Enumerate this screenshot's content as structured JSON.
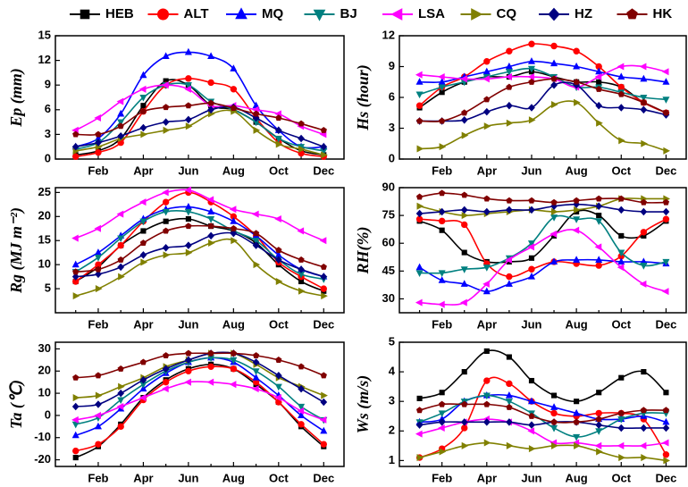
{
  "chart_data": [
    {
      "type": "line",
      "ylabel": "Ep (mm)",
      "categories": [
        null,
        "Feb",
        null,
        "Apr",
        null,
        "Jun",
        null,
        "Aug",
        null,
        "Oct",
        null,
        "Dec"
      ],
      "ylim": [
        0,
        15
      ],
      "yticks": [
        0,
        3,
        6,
        9,
        12,
        15
      ],
      "series": [
        {
          "name": "HEB",
          "color": "#000000",
          "values": [
            0.5,
            1.0,
            2.5,
            6.5,
            9.5,
            9.0,
            6.5,
            6.0,
            4.5,
            2.5,
            1.0,
            0.5
          ]
        },
        {
          "name": "ALT",
          "color": "#ff0000",
          "values": [
            0.3,
            0.8,
            2.0,
            5.8,
            9.0,
            9.8,
            9.3,
            8.5,
            5.0,
            2.0,
            0.7,
            0.3
          ]
        },
        {
          "name": "MQ",
          "color": "#0000ff",
          "values": [
            1.5,
            2.5,
            5.5,
            10.2,
            12.5,
            13.0,
            12.5,
            11.0,
            6.5,
            3.5,
            1.5,
            1.5
          ]
        },
        {
          "name": "BJ",
          "color": "#008080",
          "values": [
            1.2,
            2.0,
            4.5,
            7.5,
            9.0,
            9.0,
            7.0,
            6.0,
            4.5,
            2.5,
            1.5,
            1.0
          ]
        },
        {
          "name": "LSA",
          "color": "#ff00ff",
          "values": [
            3.5,
            5.0,
            7.0,
            8.5,
            9.0,
            8.5,
            6.5,
            6.5,
            6.0,
            5.5,
            4.0,
            3.0
          ]
        },
        {
          "name": "CQ",
          "color": "#808000",
          "values": [
            1.0,
            1.5,
            2.5,
            3.0,
            3.5,
            4.0,
            5.5,
            5.8,
            3.5,
            1.8,
            1.2,
            0.5
          ]
        },
        {
          "name": "HZ",
          "color": "#000080",
          "values": [
            1.5,
            2.0,
            2.8,
            3.8,
            4.5,
            4.8,
            6.0,
            6.3,
            5.0,
            3.5,
            2.5,
            1.5
          ]
        },
        {
          "name": "HK",
          "color": "#800000",
          "values": [
            3.0,
            3.0,
            4.0,
            5.8,
            6.3,
            6.5,
            6.8,
            6.2,
            5.5,
            5.0,
            4.3,
            3.5
          ]
        }
      ]
    },
    {
      "type": "line",
      "ylabel": "Hs (hour)",
      "categories": [
        null,
        "Feb",
        null,
        "Apr",
        null,
        "Jun",
        null,
        "Aug",
        null,
        "Oct",
        null,
        "Dec"
      ],
      "ylim": [
        0,
        12
      ],
      "yticks": [
        0,
        3,
        6,
        9,
        12
      ],
      "series": [
        {
          "color": "#000000",
          "values": [
            5.0,
            6.5,
            7.5,
            8.0,
            8.0,
            8.5,
            8.0,
            7.5,
            7.5,
            7.0,
            5.5,
            4.5
          ]
        },
        {
          "color": "#ff0000",
          "values": [
            5.2,
            7.0,
            8.0,
            9.5,
            10.5,
            11.2,
            11.0,
            10.5,
            9.0,
            7.0,
            5.5,
            4.5
          ]
        },
        {
          "color": "#0000ff",
          "values": [
            7.5,
            7.5,
            8.0,
            8.5,
            9.0,
            9.5,
            9.3,
            9.0,
            8.5,
            8.0,
            7.8,
            7.5
          ]
        },
        {
          "color": "#008080",
          "values": [
            6.3,
            7.0,
            7.5,
            8.0,
            8.5,
            8.8,
            8.0,
            7.0,
            7.0,
            6.5,
            6.0,
            5.8
          ]
        },
        {
          "color": "#ff00ff",
          "values": [
            8.2,
            8.0,
            7.8,
            7.8,
            8.0,
            8.0,
            7.8,
            7.0,
            8.0,
            9.0,
            9.0,
            8.5
          ]
        },
        {
          "color": "#808000",
          "values": [
            1.0,
            1.2,
            2.3,
            3.2,
            3.5,
            3.8,
            5.3,
            5.5,
            3.5,
            1.8,
            1.5,
            0.8
          ]
        },
        {
          "color": "#000080",
          "values": [
            3.7,
            3.7,
            3.8,
            4.6,
            5.2,
            5.0,
            7.2,
            7.2,
            5.2,
            5.0,
            4.8,
            4.3
          ]
        },
        {
          "color": "#800000",
          "values": [
            3.7,
            3.7,
            4.5,
            5.8,
            7.0,
            7.5,
            7.8,
            7.5,
            6.8,
            6.3,
            5.5,
            4.5
          ]
        }
      ]
    },
    {
      "type": "line",
      "ylabel": "Rg (MJ m⁻²)",
      "categories": [
        null,
        "Feb",
        null,
        "Apr",
        null,
        "Jun",
        null,
        "Aug",
        null,
        "Oct",
        null,
        "Dec"
      ],
      "ylim": [
        0,
        26
      ],
      "yticks": [
        5,
        10,
        15,
        20,
        25
      ],
      "series": [
        {
          "color": "#000000",
          "values": [
            6.5,
            9.5,
            14,
            17,
            19,
            19.5,
            18,
            17,
            14.5,
            10,
            6.5,
            4.5
          ]
        },
        {
          "color": "#ff0000",
          "values": [
            6.5,
            10,
            14,
            19,
            23,
            25,
            23,
            20,
            16,
            10.5,
            7.5,
            5
          ]
        },
        {
          "color": "#0000ff",
          "values": [
            10,
            12.5,
            16,
            19.5,
            21.5,
            22,
            21,
            19,
            16,
            12,
            9,
            7.5
          ]
        },
        {
          "color": "#008080",
          "values": [
            8.5,
            11.5,
            15.5,
            19,
            21,
            21,
            19.5,
            17,
            15,
            11,
            8,
            7
          ]
        },
        {
          "color": "#ff00ff",
          "values": [
            15.5,
            17.5,
            20.5,
            23,
            25,
            25.5,
            23.5,
            21.5,
            20.5,
            19.5,
            17,
            15
          ]
        },
        {
          "color": "#808000",
          "values": [
            3.5,
            5,
            7.5,
            10.5,
            12,
            12.5,
            14.5,
            15,
            10,
            6.5,
            4.5,
            3.5
          ]
        },
        {
          "color": "#000080",
          "values": [
            7.5,
            8,
            9.5,
            12,
            13.5,
            14,
            16,
            16.5,
            14,
            11,
            9,
            7.5
          ]
        },
        {
          "color": "#800000",
          "values": [
            8.5,
            9,
            11,
            14.5,
            17,
            18,
            18,
            17.5,
            16.5,
            13,
            11,
            9.5
          ]
        }
      ]
    },
    {
      "type": "line",
      "ylabel": "RH(%)",
      "categories": [
        null,
        "Feb",
        null,
        "Apr",
        null,
        "Jun",
        null,
        "Aug",
        null,
        "Oct",
        null,
        "Dec"
      ],
      "ylim": [
        22.5,
        90
      ],
      "yticks": [
        30,
        45,
        60,
        75,
        90
      ],
      "series": [
        {
          "color": "#000000",
          "values": [
            72,
            67,
            55,
            50,
            50,
            52,
            64,
            77,
            75,
            64,
            64,
            72
          ]
        },
        {
          "color": "#ff0000",
          "values": [
            73,
            72,
            70,
            49,
            42,
            46,
            50,
            49,
            48,
            53,
            66,
            73
          ]
        },
        {
          "color": "#0000ff",
          "values": [
            47,
            40,
            38,
            34,
            38,
            42,
            50,
            51,
            51,
            50,
            50,
            49
          ]
        },
        {
          "color": "#008080",
          "values": [
            44,
            44,
            46,
            47,
            52,
            60,
            74,
            73,
            72,
            55,
            48,
            50
          ]
        },
        {
          "color": "#ff00ff",
          "values": [
            28,
            27,
            28,
            38,
            51,
            58,
            65,
            67,
            58,
            47,
            38,
            34
          ]
        },
        {
          "color": "#808000",
          "values": [
            80,
            77,
            75,
            76,
            77,
            78,
            77,
            78,
            80,
            84,
            84,
            84
          ]
        },
        {
          "color": "#000080",
          "values": [
            76,
            77,
            78,
            77,
            78,
            78,
            80,
            81,
            80,
            78,
            77,
            77
          ]
        },
        {
          "color": "#800000",
          "values": [
            85,
            87,
            86,
            84,
            83,
            83,
            82,
            83,
            84,
            84,
            82,
            82
          ]
        }
      ]
    },
    {
      "type": "line",
      "ylabel": "Ta (℃)",
      "categories": [
        null,
        "Feb",
        null,
        "Apr",
        null,
        "Jun",
        null,
        "Aug",
        null,
        "Oct",
        null,
        "Dec"
      ],
      "ylim": [
        -23,
        33
      ],
      "yticks": [
        -20,
        -10,
        0,
        10,
        20,
        30
      ],
      "series": [
        {
          "color": "#000000",
          "values": [
            -19,
            -14,
            -4,
            8,
            16,
            21,
            23,
            21,
            14,
            6,
            -5,
            -14
          ]
        },
        {
          "color": "#ff0000",
          "values": [
            -16,
            -13,
            -5,
            7,
            15,
            20,
            22,
            21,
            15,
            6,
            -4,
            -13
          ]
        },
        {
          "color": "#0000ff",
          "values": [
            -9,
            -5,
            3,
            12,
            19,
            24,
            26,
            24,
            17,
            9,
            0,
            -7
          ]
        },
        {
          "color": "#008080",
          "values": [
            -4,
            -1,
            7,
            14,
            20,
            24,
            26,
            25,
            20,
            13,
            4,
            -2
          ]
        },
        {
          "color": "#ff00ff",
          "values": [
            -2,
            0,
            4,
            8,
            12,
            15,
            15,
            14,
            12,
            8,
            2,
            -2
          ]
        },
        {
          "color": "#808000",
          "values": [
            8,
            9,
            13,
            17,
            22,
            25,
            28,
            28,
            23,
            17,
            13,
            9
          ]
        },
        {
          "color": "#000080",
          "values": [
            4,
            5,
            10,
            16,
            21,
            25,
            28,
            28,
            24,
            18,
            12,
            6
          ]
        },
        {
          "color": "#800000",
          "values": [
            17,
            18,
            21,
            24,
            27,
            28,
            28,
            28,
            27,
            25,
            22,
            18
          ]
        }
      ]
    },
    {
      "type": "line",
      "ylabel": "Ws (m/s)",
      "categories": [
        null,
        "Feb",
        null,
        "Apr",
        null,
        "Jun",
        null,
        "Aug",
        null,
        "Oct",
        null,
        "Dec"
      ],
      "ylim": [
        0.8,
        5
      ],
      "yticks": [
        1,
        2,
        3,
        4,
        5
      ],
      "series": [
        {
          "color": "#000000",
          "values": [
            3.1,
            3.3,
            4.0,
            4.7,
            4.5,
            3.7,
            3.2,
            3.0,
            3.3,
            3.8,
            4.0,
            3.3
          ]
        },
        {
          "color": "#ff0000",
          "values": [
            1.1,
            1.4,
            2.1,
            3.7,
            3.6,
            3.0,
            2.6,
            2.5,
            2.6,
            2.6,
            2.4,
            1.2
          ]
        },
        {
          "color": "#0000ff",
          "values": [
            2.3,
            2.4,
            3.0,
            3.2,
            3.2,
            3.0,
            2.8,
            2.6,
            2.4,
            2.4,
            2.5,
            2.3
          ]
        },
        {
          "color": "#008080",
          "values": [
            2.3,
            2.6,
            3.0,
            3.2,
            3.0,
            2.6,
            2.1,
            1.8,
            2.0,
            2.4,
            2.6,
            2.6
          ]
        },
        {
          "color": "#ff00ff",
          "values": [
            1.9,
            2.1,
            2.3,
            2.4,
            2.3,
            2.0,
            1.6,
            1.6,
            1.5,
            1.5,
            1.5,
            1.6
          ]
        },
        {
          "color": "#808000",
          "values": [
            1.1,
            1.3,
            1.5,
            1.6,
            1.5,
            1.4,
            1.5,
            1.5,
            1.3,
            1.1,
            1.1,
            1.0
          ]
        },
        {
          "color": "#000080",
          "values": [
            2.2,
            2.3,
            2.3,
            2.3,
            2.3,
            2.2,
            2.3,
            2.3,
            2.2,
            2.1,
            2.1,
            2.1
          ]
        },
        {
          "color": "#800000",
          "values": [
            2.7,
            2.9,
            2.9,
            2.9,
            2.8,
            2.5,
            2.3,
            2.3,
            2.4,
            2.6,
            2.7,
            2.7
          ]
        }
      ]
    }
  ]
}
